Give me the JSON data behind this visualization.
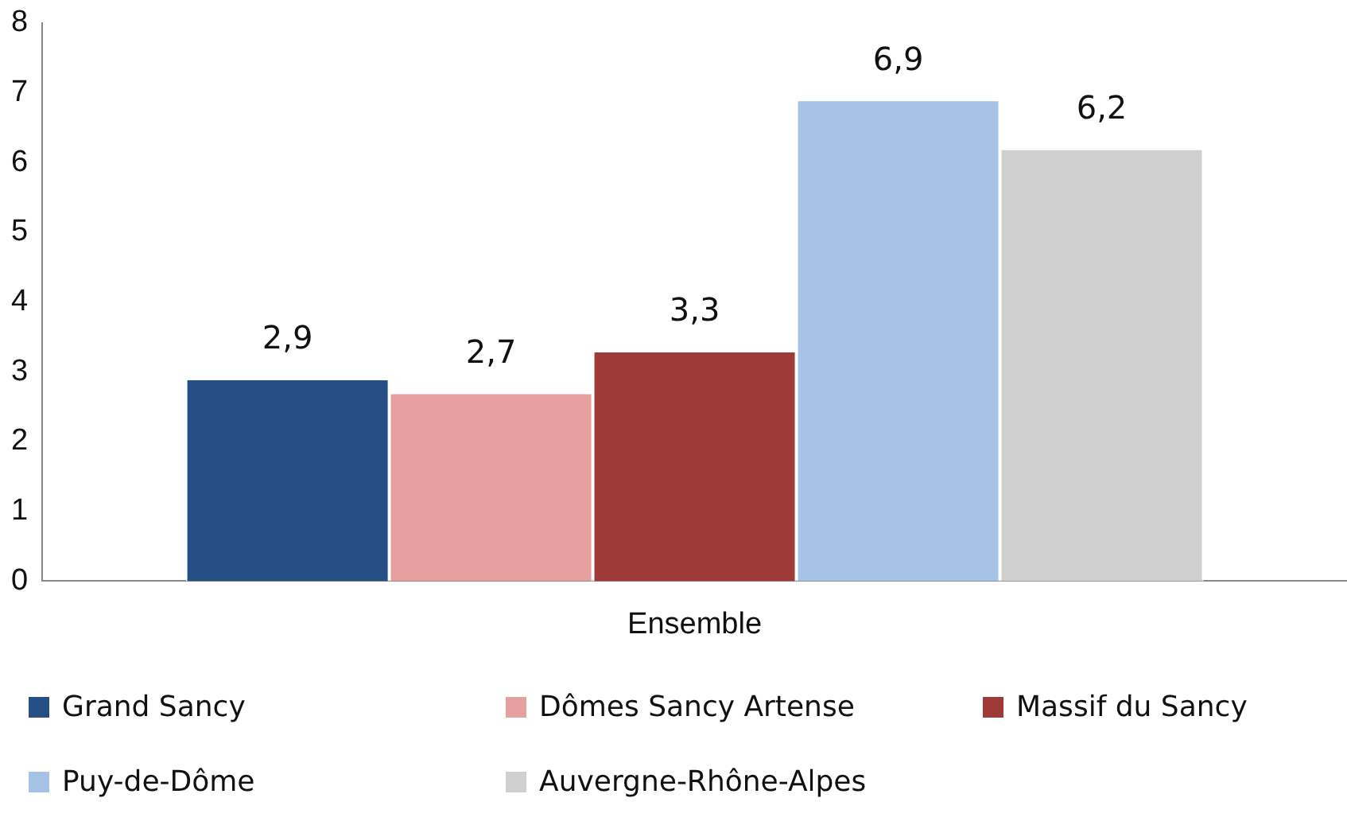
{
  "chart_data": {
    "type": "bar",
    "categories": [
      "Ensemble"
    ],
    "series": [
      {
        "name": "Grand Sancy",
        "color": "#254f85",
        "values": [
          2.9
        ],
        "value_labels": [
          "2,9"
        ]
      },
      {
        "name": "Dômes Sancy Artense",
        "color": "#e6a09f",
        "values": [
          2.7
        ],
        "value_labels": [
          "2,7"
        ]
      },
      {
        "name": "Massif du Sancy",
        "color": "#9e3a38",
        "values": [
          3.3
        ],
        "value_labels": [
          "3,3"
        ]
      },
      {
        "name": "Puy-de-Dôme",
        "color": "#a6c3e6",
        "values": [
          6.9
        ],
        "value_labels": [
          "6,9"
        ]
      },
      {
        "name": "Auvergne-Rhône-Alpes",
        "color": "#cfcfcf",
        "values": [
          6.2
        ],
        "value_labels": [
          "6,2"
        ]
      }
    ],
    "ylim": [
      0,
      8
    ],
    "yticks": [
      0,
      1,
      2,
      3,
      4,
      5,
      6,
      7,
      8
    ],
    "legend": "bottom"
  }
}
